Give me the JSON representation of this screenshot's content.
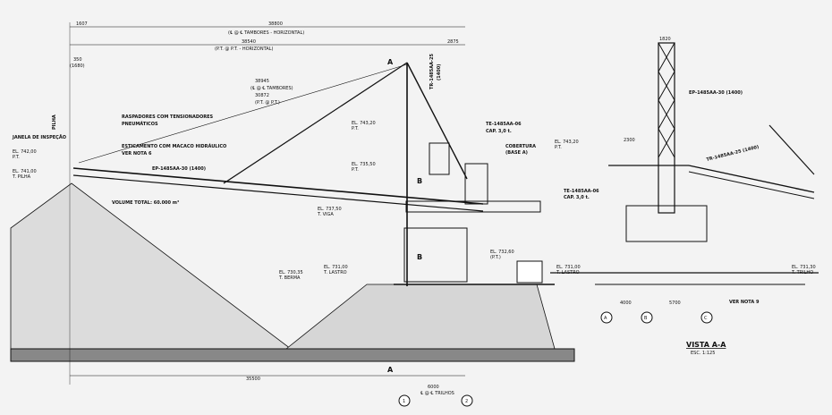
{
  "drawing": {
    "dims": {
      "total_top": "38800",
      "left_small": "1607",
      "right_small": "2875",
      "pt_horizontal_val": "38540",
      "mid_350": "350",
      "mid_350b": "(1680)",
      "ded_35945": "38945",
      "ded_30872": "30872",
      "bottom_total": "35500",
      "bottom_6000": "6000",
      "view_top": "1820",
      "view_2300": "2300",
      "view_4000": "4000",
      "view_5700": "5700"
    },
    "captions": {
      "tamb_horizontal": "(℄ @ ℄ TAMBORES - HORIZONTAL)",
      "pt_horizontal": "(P.T. @ P.T. - HORIZONTAL)",
      "tamb_short": "(℄ @ ℄ TAMBORES)",
      "pt_short": "(P.T. @ P.T.)",
      "trilhos": "℄ @ ℄ TRILHOS"
    },
    "labels": {
      "pilha": "PILHA",
      "janela": "JANELA DE INSPEÇÃO",
      "raspadores": "RASPADORES COM TENSIONADORES",
      "raspadores2": "PNEUMÁTICOS",
      "estic": "ESTICAMENTO COM MACACO HIDRÁULICO",
      "ver_nota_6": "VER NOTA 6",
      "ep_main": "EP-1485AA-30 (1400)",
      "volume": "VOLUME TOTAL: 60.000 m³",
      "tr_vertical": "TR-1485AA-25",
      "tr_vertical2": "(1400)",
      "te_tag": "TE-1485AA-06",
      "cap": "CAP. 3,0 t.",
      "cobertura": "COBERTURA",
      "cobertura2": "(BASE A)",
      "ep_view": "EP-1485AA-30 (1400)",
      "tr_view": "TR-1485AA-25 (1400)",
      "te_view": "TE-1485AA-06",
      "cap_view": "CAP. 3,0 t.",
      "ver_nota_9": "VER NOTA 9",
      "vista": "VISTA A-A",
      "esc": "ESC. 1:125",
      "sec_a": "A",
      "sec_b": "B"
    },
    "elevations": [
      {
        "v": "EL. 742,00",
        "s": "P.T."
      },
      {
        "v": "EL. 741,00",
        "s": "T. PILHA"
      },
      {
        "v": "EL. 743,20",
        "s": "P.T."
      },
      {
        "v": "EL. 735,50",
        "s": "P.T."
      },
      {
        "v": "EL. 737,50",
        "s": "T. VIGA"
      },
      {
        "v": "EL. 732,60",
        "s": "(P.T.)"
      },
      {
        "v": "EL. 730,35",
        "s": "T. BERMA"
      },
      {
        "v": "EL. 731,00",
        "s": "T. LASTRO"
      },
      {
        "v": "EL. 743,20",
        "s": "P.T."
      },
      {
        "v": "EL. 731,00",
        "s": "T. LASTRO"
      },
      {
        "v": "EL. 731,30",
        "s": "T. TRILHO"
      }
    ],
    "axes": [
      "1",
      "2",
      "A",
      "B",
      "C"
    ]
  }
}
